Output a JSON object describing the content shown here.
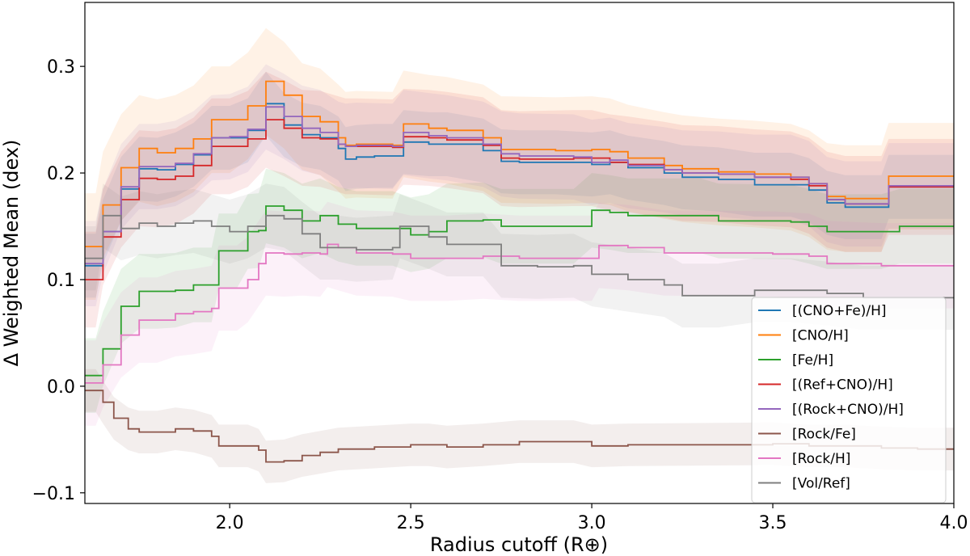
{
  "chart_data": {
    "type": "line",
    "xlabel": "Radius cutoff (R⊕)",
    "ylabel": "Δ Weighted Mean (dex)",
    "xlim": [
      1.6,
      4.0
    ],
    "ylim": [
      -0.11,
      0.36
    ],
    "x_ticks": [
      2.0,
      2.5,
      3.0,
      3.5,
      4.0
    ],
    "x_tick_labels": [
      "2.0",
      "2.5",
      "3.0",
      "3.5",
      "4.0"
    ],
    "y_ticks": [
      -0.1,
      0.0,
      0.1,
      0.2,
      0.3
    ],
    "y_tick_labels": [
      "−0.1",
      "0.0",
      "0.1",
      "0.2",
      "0.3"
    ],
    "grid": false,
    "legend_position": "bottom-right",
    "series": [
      {
        "name": "[(CNO+Fe)/H]",
        "color": "#1f77b4",
        "band_width": 0.03,
        "points": [
          [
            1.6,
            0.113
          ],
          [
            1.63,
            0.113
          ],
          [
            1.65,
            0.145
          ],
          [
            1.7,
            0.185
          ],
          [
            1.75,
            0.204
          ],
          [
            1.8,
            0.203
          ],
          [
            1.85,
            0.208
          ],
          [
            1.9,
            0.217
          ],
          [
            1.95,
            0.233
          ],
          [
            2.0,
            0.233
          ],
          [
            2.05,
            0.24
          ],
          [
            2.1,
            0.265
          ],
          [
            2.15,
            0.245
          ],
          [
            2.2,
            0.236
          ],
          [
            2.25,
            0.233
          ],
          [
            2.3,
            0.223
          ],
          [
            2.32,
            0.213
          ],
          [
            2.35,
            0.215
          ],
          [
            2.4,
            0.216
          ],
          [
            2.45,
            0.216
          ],
          [
            2.48,
            0.229
          ],
          [
            2.55,
            0.227
          ],
          [
            2.6,
            0.227
          ],
          [
            2.7,
            0.221
          ],
          [
            2.75,
            0.211
          ],
          [
            2.8,
            0.21
          ],
          [
            2.9,
            0.21
          ],
          [
            3.0,
            0.208
          ],
          [
            3.05,
            0.21
          ],
          [
            3.1,
            0.205
          ],
          [
            3.2,
            0.2
          ],
          [
            3.25,
            0.196
          ],
          [
            3.35,
            0.194
          ],
          [
            3.45,
            0.189
          ],
          [
            3.55,
            0.189
          ],
          [
            3.6,
            0.184
          ],
          [
            3.65,
            0.172
          ],
          [
            3.7,
            0.168
          ],
          [
            3.8,
            0.168
          ],
          [
            3.82,
            0.187
          ],
          [
            4.0,
            0.187
          ]
        ]
      },
      {
        "name": "[CNO/H]",
        "color": "#ff7f0e",
        "band_width": 0.05,
        "points": [
          [
            1.6,
            0.131
          ],
          [
            1.63,
            0.131
          ],
          [
            1.65,
            0.17
          ],
          [
            1.7,
            0.205
          ],
          [
            1.75,
            0.223
          ],
          [
            1.8,
            0.219
          ],
          [
            1.85,
            0.223
          ],
          [
            1.9,
            0.232
          ],
          [
            1.95,
            0.25
          ],
          [
            2.0,
            0.25
          ],
          [
            2.05,
            0.263
          ],
          [
            2.1,
            0.286
          ],
          [
            2.15,
            0.273
          ],
          [
            2.2,
            0.253
          ],
          [
            2.25,
            0.248
          ],
          [
            2.3,
            0.233
          ],
          [
            2.32,
            0.226
          ],
          [
            2.35,
            0.227
          ],
          [
            2.45,
            0.226
          ],
          [
            2.48,
            0.246
          ],
          [
            2.55,
            0.242
          ],
          [
            2.6,
            0.24
          ],
          [
            2.7,
            0.233
          ],
          [
            2.75,
            0.222
          ],
          [
            2.9,
            0.221
          ],
          [
            3.0,
            0.222
          ],
          [
            3.05,
            0.22
          ],
          [
            3.1,
            0.214
          ],
          [
            3.2,
            0.207
          ],
          [
            3.25,
            0.204
          ],
          [
            3.35,
            0.201
          ],
          [
            3.45,
            0.199
          ],
          [
            3.55,
            0.196
          ],
          [
            3.6,
            0.19
          ],
          [
            3.65,
            0.178
          ],
          [
            3.7,
            0.176
          ],
          [
            3.8,
            0.176
          ],
          [
            3.82,
            0.197
          ],
          [
            4.0,
            0.197
          ]
        ]
      },
      {
        "name": "[Fe/H]",
        "color": "#2ca02c",
        "band_width": 0.035,
        "points": [
          [
            1.6,
            0.01
          ],
          [
            1.63,
            0.01
          ],
          [
            1.65,
            0.035
          ],
          [
            1.7,
            0.075
          ],
          [
            1.75,
            0.089
          ],
          [
            1.8,
            0.089
          ],
          [
            1.85,
            0.09
          ],
          [
            1.9,
            0.095
          ],
          [
            1.95,
            0.095
          ],
          [
            1.97,
            0.127
          ],
          [
            2.02,
            0.127
          ],
          [
            2.05,
            0.145
          ],
          [
            2.08,
            0.146
          ],
          [
            2.1,
            0.169
          ],
          [
            2.15,
            0.165
          ],
          [
            2.2,
            0.155
          ],
          [
            2.25,
            0.16
          ],
          [
            2.3,
            0.152
          ],
          [
            2.35,
            0.148
          ],
          [
            2.45,
            0.148
          ],
          [
            2.5,
            0.142
          ],
          [
            2.55,
            0.145
          ],
          [
            2.6,
            0.155
          ],
          [
            2.7,
            0.156
          ],
          [
            2.75,
            0.15
          ],
          [
            2.8,
            0.15
          ],
          [
            2.95,
            0.15
          ],
          [
            3.0,
            0.165
          ],
          [
            3.05,
            0.163
          ],
          [
            3.1,
            0.16
          ],
          [
            3.3,
            0.16
          ],
          [
            3.35,
            0.155
          ],
          [
            3.55,
            0.154
          ],
          [
            3.6,
            0.15
          ],
          [
            3.65,
            0.145
          ],
          [
            3.8,
            0.145
          ],
          [
            3.85,
            0.15
          ],
          [
            4.0,
            0.15
          ]
        ]
      },
      {
        "name": "[(Ref+CNO)/H]",
        "color": "#d62728",
        "band_width": 0.045,
        "points": [
          [
            1.6,
            0.1
          ],
          [
            1.63,
            0.1
          ],
          [
            1.65,
            0.14
          ],
          [
            1.7,
            0.175
          ],
          [
            1.75,
            0.195
          ],
          [
            1.8,
            0.194
          ],
          [
            1.85,
            0.197
          ],
          [
            1.9,
            0.207
          ],
          [
            1.95,
            0.225
          ],
          [
            2.0,
            0.225
          ],
          [
            2.05,
            0.232
          ],
          [
            2.1,
            0.25
          ],
          [
            2.15,
            0.242
          ],
          [
            2.2,
            0.233
          ],
          [
            2.25,
            0.232
          ],
          [
            2.3,
            0.227
          ],
          [
            2.32,
            0.225
          ],
          [
            2.35,
            0.225
          ],
          [
            2.45,
            0.224
          ],
          [
            2.48,
            0.234
          ],
          [
            2.55,
            0.233
          ],
          [
            2.6,
            0.231
          ],
          [
            2.7,
            0.226
          ],
          [
            2.75,
            0.214
          ],
          [
            2.8,
            0.213
          ],
          [
            2.95,
            0.214
          ],
          [
            3.0,
            0.214
          ],
          [
            3.05,
            0.21
          ],
          [
            3.1,
            0.208
          ],
          [
            3.2,
            0.203
          ],
          [
            3.25,
            0.2
          ],
          [
            3.35,
            0.199
          ],
          [
            3.45,
            0.196
          ],
          [
            3.55,
            0.194
          ],
          [
            3.6,
            0.188
          ],
          [
            3.65,
            0.175
          ],
          [
            3.7,
            0.171
          ],
          [
            3.8,
            0.171
          ],
          [
            3.82,
            0.187
          ],
          [
            4.0,
            0.187
          ]
        ]
      },
      {
        "name": "[(Rock+CNO)/H]",
        "color": "#9467bd",
        "band_width": 0.04,
        "points": [
          [
            1.6,
            0.115
          ],
          [
            1.63,
            0.115
          ],
          [
            1.65,
            0.145
          ],
          [
            1.7,
            0.187
          ],
          [
            1.75,
            0.206
          ],
          [
            1.8,
            0.206
          ],
          [
            1.85,
            0.209
          ],
          [
            1.9,
            0.218
          ],
          [
            1.95,
            0.233
          ],
          [
            2.0,
            0.234
          ],
          [
            2.05,
            0.241
          ],
          [
            2.1,
            0.262
          ],
          [
            2.15,
            0.253
          ],
          [
            2.2,
            0.242
          ],
          [
            2.25,
            0.238
          ],
          [
            2.3,
            0.227
          ],
          [
            2.32,
            0.225
          ],
          [
            2.35,
            0.226
          ],
          [
            2.45,
            0.225
          ],
          [
            2.48,
            0.238
          ],
          [
            2.55,
            0.235
          ],
          [
            2.6,
            0.233
          ],
          [
            2.7,
            0.227
          ],
          [
            2.75,
            0.218
          ],
          [
            2.8,
            0.216
          ],
          [
            2.95,
            0.215
          ],
          [
            3.0,
            0.21
          ],
          [
            3.05,
            0.212
          ],
          [
            3.1,
            0.207
          ],
          [
            3.2,
            0.203
          ],
          [
            3.25,
            0.2
          ],
          [
            3.35,
            0.199
          ],
          [
            3.45,
            0.196
          ],
          [
            3.55,
            0.196
          ],
          [
            3.6,
            0.19
          ],
          [
            3.65,
            0.175
          ],
          [
            3.7,
            0.171
          ],
          [
            3.8,
            0.171
          ],
          [
            3.82,
            0.188
          ],
          [
            4.0,
            0.188
          ]
        ]
      },
      {
        "name": "[Rock/Fe]",
        "color": "#8c564b",
        "band_width": 0.02,
        "points": [
          [
            1.6,
            -0.004
          ],
          [
            1.63,
            -0.004
          ],
          [
            1.65,
            -0.015
          ],
          [
            1.68,
            -0.03
          ],
          [
            1.72,
            -0.04
          ],
          [
            1.75,
            -0.043
          ],
          [
            1.8,
            -0.043
          ],
          [
            1.85,
            -0.04
          ],
          [
            1.9,
            -0.042
          ],
          [
            1.95,
            -0.047
          ],
          [
            1.97,
            -0.056
          ],
          [
            2.05,
            -0.056
          ],
          [
            2.08,
            -0.06
          ],
          [
            2.1,
            -0.071
          ],
          [
            2.15,
            -0.07
          ],
          [
            2.2,
            -0.065
          ],
          [
            2.25,
            -0.062
          ],
          [
            2.3,
            -0.059
          ],
          [
            2.4,
            -0.057
          ],
          [
            2.5,
            -0.055
          ],
          [
            2.55,
            -0.055
          ],
          [
            2.6,
            -0.057
          ],
          [
            2.7,
            -0.055
          ],
          [
            2.8,
            -0.052
          ],
          [
            2.95,
            -0.052
          ],
          [
            3.0,
            -0.056
          ],
          [
            3.1,
            -0.055
          ],
          [
            3.5,
            -0.054
          ],
          [
            3.6,
            -0.056
          ],
          [
            3.7,
            -0.056
          ],
          [
            3.8,
            -0.058
          ],
          [
            3.9,
            -0.059
          ],
          [
            4.0,
            -0.059
          ]
        ]
      },
      {
        "name": "[Rock/H]",
        "color": "#e377c2",
        "band_width": 0.04,
        "points": [
          [
            1.6,
            0.003
          ],
          [
            1.63,
            0.003
          ],
          [
            1.65,
            0.02
          ],
          [
            1.7,
            0.048
          ],
          [
            1.75,
            0.062
          ],
          [
            1.8,
            0.062
          ],
          [
            1.85,
            0.068
          ],
          [
            1.9,
            0.07
          ],
          [
            1.95,
            0.073
          ],
          [
            1.97,
            0.092
          ],
          [
            2.02,
            0.092
          ],
          [
            2.05,
            0.1
          ],
          [
            2.08,
            0.115
          ],
          [
            2.1,
            0.125
          ],
          [
            2.15,
            0.124
          ],
          [
            2.2,
            0.125
          ],
          [
            2.25,
            0.124
          ],
          [
            2.27,
            0.133
          ],
          [
            2.3,
            0.13
          ],
          [
            2.35,
            0.125
          ],
          [
            2.45,
            0.124
          ],
          [
            2.5,
            0.12
          ],
          [
            2.6,
            0.12
          ],
          [
            2.7,
            0.122
          ],
          [
            2.8,
            0.12
          ],
          [
            3.0,
            0.12
          ],
          [
            3.02,
            0.132
          ],
          [
            3.1,
            0.13
          ],
          [
            3.2,
            0.125
          ],
          [
            3.5,
            0.124
          ],
          [
            3.6,
            0.122
          ],
          [
            3.65,
            0.115
          ],
          [
            3.8,
            0.113
          ],
          [
            4.0,
            0.113
          ]
        ]
      },
      {
        "name": "[Vol/Ref]",
        "color": "#7f7f7f",
        "band_width": 0.03,
        "points": [
          [
            1.6,
            0.12
          ],
          [
            1.63,
            0.12
          ],
          [
            1.65,
            0.16
          ],
          [
            1.7,
            0.148
          ],
          [
            1.75,
            0.153
          ],
          [
            1.8,
            0.15
          ],
          [
            1.85,
            0.153
          ],
          [
            1.9,
            0.155
          ],
          [
            1.95,
            0.15
          ],
          [
            2.0,
            0.145
          ],
          [
            2.05,
            0.15
          ],
          [
            2.1,
            0.16
          ],
          [
            2.15,
            0.157
          ],
          [
            2.2,
            0.143
          ],
          [
            2.25,
            0.13
          ],
          [
            2.3,
            0.13
          ],
          [
            2.35,
            0.128
          ],
          [
            2.45,
            0.13
          ],
          [
            2.47,
            0.15
          ],
          [
            2.55,
            0.14
          ],
          [
            2.6,
            0.133
          ],
          [
            2.7,
            0.133
          ],
          [
            2.75,
            0.113
          ],
          [
            2.85,
            0.112
          ],
          [
            2.95,
            0.113
          ],
          [
            3.0,
            0.105
          ],
          [
            3.1,
            0.1
          ],
          [
            3.2,
            0.095
          ],
          [
            3.25,
            0.085
          ],
          [
            3.35,
            0.085
          ],
          [
            3.45,
            0.09
          ],
          [
            3.55,
            0.09
          ],
          [
            3.65,
            0.087
          ],
          [
            3.75,
            0.083
          ],
          [
            4.0,
            0.083
          ]
        ]
      }
    ]
  }
}
